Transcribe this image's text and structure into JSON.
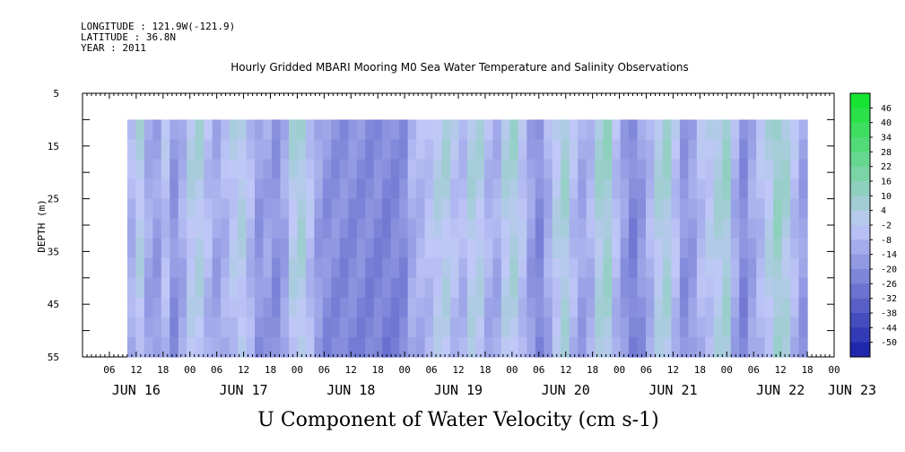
{
  "header": {
    "longitude": "LONGITUDE : 121.9W(-121.9)",
    "latitude": "LATITUDE : 36.8N",
    "year": "YEAR : 2011"
  },
  "chart_data": {
    "type": "heatmap",
    "title": "Hourly Gridded MBARI Mooring M0 Sea Water Temperature and Salinity Observations",
    "xlabel": "U Component of Water Velocity (cm s-1)",
    "ylabel": "DEPTH (m)",
    "y_axis": {
      "range": [
        5,
        55
      ],
      "inverted": true,
      "tick_labels": [
        "5",
        "15",
        "25",
        "35",
        "45",
        "55"
      ],
      "tick_values": [
        5,
        15,
        25,
        35,
        45,
        55
      ]
    },
    "x_axis": {
      "range_hours": [
        0,
        168
      ],
      "hour_tick_labels": [
        "06",
        "12",
        "18",
        "00",
        "06",
        "12",
        "18",
        "00",
        "06",
        "12",
        "18",
        "00",
        "06",
        "12",
        "18",
        "00",
        "06",
        "12",
        "18",
        "00",
        "06",
        "12",
        "18",
        "00",
        "06",
        "12",
        "18",
        "00"
      ],
      "day_labels": [
        "JUN 16",
        "JUN 17",
        "JUN 18",
        "JUN 19",
        "JUN 20",
        "JUN 21",
        "JUN 22",
        "JUN 23"
      ]
    },
    "data_extent": {
      "depth_range": [
        10,
        55
      ],
      "time_start": "JUN 16 10:00",
      "time_end": "JUN 22 18:00"
    },
    "colorbar": {
      "labels": [
        "46",
        "40",
        "34",
        "28",
        "22",
        "16",
        "10",
        "4",
        "-2",
        "-8",
        "-14",
        "-20",
        "-26",
        "-32",
        "-38",
        "-44",
        "-50"
      ],
      "min": -50,
      "max": 50
    },
    "columns_u": [
      -6,
      3,
      -9,
      -12,
      -3,
      -15,
      -8,
      2,
      4,
      -4,
      -10,
      -6,
      0,
      3,
      -5,
      -14,
      -11,
      -16,
      -10,
      3,
      6,
      -3,
      -12,
      -16,
      -17,
      -18,
      -18,
      -18,
      -19,
      -19,
      -20,
      -19,
      -18,
      -8,
      -6,
      -3,
      2,
      4,
      -2,
      -5,
      4,
      3,
      -6,
      -8,
      3,
      6,
      -2,
      -12,
      -18,
      -8,
      2,
      7,
      -4,
      -10,
      -6,
      6,
      9,
      -4,
      -13,
      -20,
      -14,
      -6,
      4,
      7,
      -3,
      -15,
      -12,
      -4,
      0,
      5,
      8,
      -8,
      -18,
      -10,
      -4,
      3,
      10,
      6,
      -4,
      -12
    ]
  },
  "colors": {
    "positive": "#00a000",
    "negative": "#2d3cc8",
    "neutral": "#c0c8f8"
  }
}
